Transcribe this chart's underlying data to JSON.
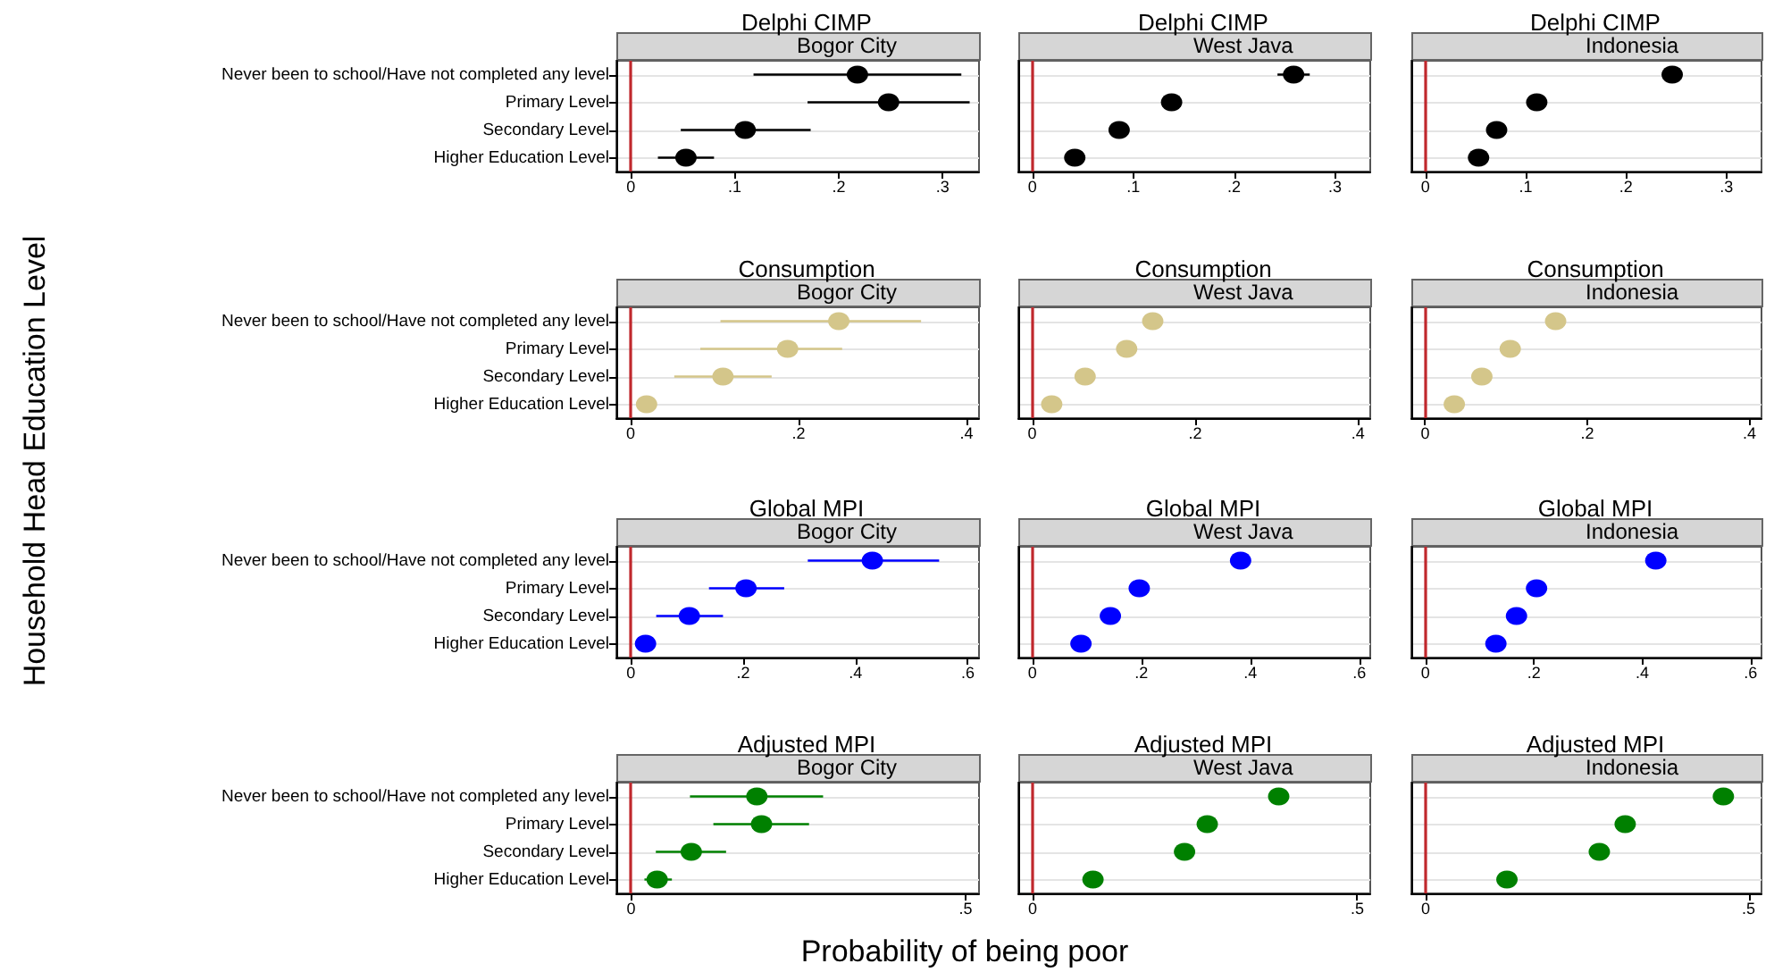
{
  "chart_data": [
    {
      "type": "scatter",
      "orientation": "horizontal",
      "title": "Delphi CIMP",
      "subtitle": "Bogor City",
      "ylabel": "Household Head Education Level",
      "categories": [
        "Never been to school/Have not completed any level",
        "Primary Level",
        "Secondary Level",
        "Higher Education Level"
      ],
      "values": [
        0.218,
        0.248,
        0.11,
        0.053
      ],
      "errors": [
        [
          0.118,
          0.318
        ],
        [
          0.17,
          0.326
        ],
        [
          0.048,
          0.173
        ],
        [
          0.026,
          0.08
        ]
      ],
      "color": "#000000",
      "marker": "circle",
      "xlim": [
        -0.014,
        0.335
      ],
      "xticks": [
        {
          "value": 0,
          "label": "0"
        },
        {
          "value": 0.1,
          "label": ".1"
        },
        {
          "value": 0.2,
          "label": ".2"
        },
        {
          "value": 0.3,
          "label": ".3"
        }
      ],
      "grid": "y",
      "ref_lines": [
        {
          "axis": "x",
          "value": 0,
          "label": null,
          "color": "#c0282d"
        }
      ]
    },
    {
      "type": "scatter",
      "orientation": "horizontal",
      "title": "Delphi CIMP",
      "subtitle": "West Java",
      "categories": [
        null,
        null,
        null,
        null
      ],
      "values": [
        0.259,
        0.138,
        0.086,
        0.042
      ],
      "errors": [
        [
          0.243,
          0.275
        ],
        null,
        null,
        null
      ],
      "color": "#000000",
      "marker": "circle",
      "xlim": [
        -0.014,
        0.335
      ],
      "xticks": [
        {
          "value": 0,
          "label": "0"
        },
        {
          "value": 0.1,
          "label": ".1"
        },
        {
          "value": 0.2,
          "label": ".2"
        },
        {
          "value": 0.3,
          "label": ".3"
        }
      ],
      "grid": "y",
      "tick_labels": "x",
      "ref_lines": [
        {
          "axis": "x",
          "value": 0,
          "label": null,
          "color": "#c0282d"
        }
      ]
    },
    {
      "type": "scatter",
      "orientation": "horizontal",
      "title": "Delphi CIMP",
      "subtitle": "Indonesia",
      "categories": [
        null,
        null,
        null,
        null
      ],
      "values": [
        0.246,
        0.111,
        0.071,
        0.053
      ],
      "color": "#000000",
      "marker": "circle",
      "xlim": [
        -0.014,
        0.335
      ],
      "xticks": [
        {
          "value": 0,
          "label": "0"
        },
        {
          "value": 0.1,
          "label": ".1"
        },
        {
          "value": 0.2,
          "label": ".2"
        },
        {
          "value": 0.3,
          "label": ".3"
        }
      ],
      "grid": "y",
      "tick_labels": "x",
      "ref_lines": [
        {
          "axis": "x",
          "value": 0,
          "label": null,
          "color": "#c0282d"
        }
      ]
    },
    {
      "type": "scatter",
      "orientation": "horizontal",
      "title": "Consumption",
      "subtitle": "Bogor City",
      "categories": [
        "Never been to school/Have not completed any level",
        "Primary Level",
        "Secondary Level",
        "Higher Education Level"
      ],
      "values": [
        0.248,
        0.187,
        0.11,
        0.019
      ],
      "errors": [
        [
          0.107,
          0.346
        ],
        [
          0.083,
          0.252
        ],
        [
          0.052,
          0.168
        ],
        null
      ],
      "color": "#d4c68a",
      "marker": "circle",
      "xlim": [
        -0.017,
        0.415
      ],
      "xticks": [
        {
          "value": 0,
          "label": "0"
        },
        {
          "value": 0.2,
          "label": ".2"
        },
        {
          "value": 0.4,
          "label": ".4"
        }
      ],
      "grid": "y",
      "ref_lines": [
        {
          "axis": "x",
          "value": 0,
          "label": null,
          "color": "#c0282d"
        }
      ]
    },
    {
      "type": "scatter",
      "orientation": "horizontal",
      "title": "Consumption",
      "subtitle": "West Java",
      "categories": [
        null,
        null,
        null,
        null
      ],
      "values": [
        0.148,
        0.116,
        0.065,
        0.024
      ],
      "color": "#d4c68a",
      "marker": "circle",
      "xlim": [
        -0.017,
        0.415
      ],
      "xticks": [
        {
          "value": 0,
          "label": "0"
        },
        {
          "value": 0.2,
          "label": ".2"
        },
        {
          "value": 0.4,
          "label": ".4"
        }
      ],
      "grid": "y",
      "tick_labels": "x",
      "ref_lines": [
        {
          "axis": "x",
          "value": 0,
          "label": null,
          "color": "#c0282d"
        }
      ]
    },
    {
      "type": "scatter",
      "orientation": "horizontal",
      "title": "Consumption",
      "subtitle": "Indonesia",
      "categories": [
        null,
        null,
        null,
        null
      ],
      "values": [
        0.161,
        0.105,
        0.07,
        0.036
      ],
      "color": "#d4c68a",
      "marker": "circle",
      "xlim": [
        -0.017,
        0.415
      ],
      "xticks": [
        {
          "value": 0,
          "label": "0"
        },
        {
          "value": 0.2,
          "label": ".2"
        },
        {
          "value": 0.4,
          "label": ".4"
        }
      ],
      "grid": "y",
      "tick_labels": "x",
      "ref_lines": [
        {
          "axis": "x",
          "value": 0,
          "label": null,
          "color": "#c0282d"
        }
      ]
    },
    {
      "type": "scatter",
      "orientation": "horizontal",
      "title": "Global MPI",
      "subtitle": "Bogor City",
      "categories": [
        "Never been to school/Have not completed any level",
        "Primary Level",
        "Secondary Level",
        "Higher Education Level"
      ],
      "values": [
        0.43,
        0.205,
        0.104,
        0.026
      ],
      "errors": [
        [
          0.315,
          0.549
        ],
        [
          0.139,
          0.273
        ],
        [
          0.045,
          0.164
        ],
        null
      ],
      "color": "#0000ff",
      "marker": "circle",
      "xlim": [
        -0.026,
        0.62
      ],
      "xticks": [
        {
          "value": 0,
          "label": "0"
        },
        {
          "value": 0.2,
          "label": ".2"
        },
        {
          "value": 0.4,
          "label": ".4"
        },
        {
          "value": 0.6,
          "label": ".6"
        }
      ],
      "grid": "y",
      "ref_lines": [
        {
          "axis": "x",
          "value": 0,
          "label": null,
          "color": "#c0282d"
        }
      ]
    },
    {
      "type": "scatter",
      "orientation": "horizontal",
      "title": "Global MPI",
      "subtitle": "West Java",
      "categories": [
        null,
        null,
        null,
        null
      ],
      "values": [
        0.382,
        0.196,
        0.143,
        0.089
      ],
      "color": "#0000ff",
      "marker": "circle",
      "xlim": [
        -0.026,
        0.62
      ],
      "xticks": [
        {
          "value": 0,
          "label": "0"
        },
        {
          "value": 0.2,
          "label": ".2"
        },
        {
          "value": 0.4,
          "label": ".4"
        },
        {
          "value": 0.6,
          "label": ".6"
        }
      ],
      "grid": "y",
      "tick_labels": "x",
      "ref_lines": [
        {
          "axis": "x",
          "value": 0,
          "label": null,
          "color": "#c0282d"
        }
      ]
    },
    {
      "type": "scatter",
      "orientation": "horizontal",
      "title": "Global MPI",
      "subtitle": "Indonesia",
      "categories": [
        null,
        null,
        null,
        null
      ],
      "values": [
        0.425,
        0.205,
        0.168,
        0.13
      ],
      "color": "#0000ff",
      "marker": "circle",
      "xlim": [
        -0.026,
        0.62
      ],
      "xticks": [
        {
          "value": 0,
          "label": "0"
        },
        {
          "value": 0.2,
          "label": ".2"
        },
        {
          "value": 0.4,
          "label": ".4"
        },
        {
          "value": 0.6,
          "label": ".6"
        }
      ],
      "grid": "y",
      "tick_labels": "x",
      "ref_lines": [
        {
          "axis": "x",
          "value": 0,
          "label": null,
          "color": "#c0282d"
        }
      ]
    },
    {
      "type": "scatter",
      "orientation": "horizontal",
      "title": "Adjusted MPI",
      "subtitle": "Bogor City",
      "categories": [
        "Never been to school/Have not completed any level",
        "Primary Level",
        "Secondary Level",
        "Higher Education Level"
      ],
      "values": [
        0.188,
        0.195,
        0.09,
        0.039
      ],
      "errors": [
        [
          0.088,
          0.287
        ],
        [
          0.123,
          0.266
        ],
        [
          0.037,
          0.142
        ],
        [
          0.02,
          0.061
        ]
      ],
      "color": "#008000",
      "marker": "circle",
      "xlim": [
        -0.022,
        0.52
      ],
      "xticks": [
        {
          "value": 0,
          "label": "0"
        },
        {
          "value": 0.5,
          "label": ".5"
        }
      ],
      "grid": "y",
      "ref_lines": [
        {
          "axis": "x",
          "value": 0,
          "label": null,
          "color": "#c0282d"
        }
      ]
    },
    {
      "type": "scatter",
      "orientation": "horizontal",
      "title": "Adjusted MPI",
      "subtitle": "West Java",
      "xlabel": "Probability of being poor",
      "categories": [
        null,
        null,
        null,
        null
      ],
      "values": [
        0.379,
        0.269,
        0.234,
        0.093
      ],
      "color": "#008000",
      "marker": "circle",
      "xlim": [
        -0.022,
        0.52
      ],
      "xticks": [
        {
          "value": 0,
          "label": "0"
        },
        {
          "value": 0.5,
          "label": ".5"
        }
      ],
      "grid": "y",
      "tick_labels": "x",
      "ref_lines": [
        {
          "axis": "x",
          "value": 0,
          "label": null,
          "color": "#c0282d"
        }
      ]
    },
    {
      "type": "scatter",
      "orientation": "horizontal",
      "title": "Adjusted MPI",
      "subtitle": "Indonesia",
      "categories": [
        null,
        null,
        null,
        null
      ],
      "values": [
        0.461,
        0.309,
        0.269,
        0.126
      ],
      "color": "#008000",
      "marker": "circle",
      "xlim": [
        -0.022,
        0.52
      ],
      "xticks": [
        {
          "value": 0,
          "label": "0"
        },
        {
          "value": 0.5,
          "label": ".5"
        }
      ],
      "grid": "y",
      "tick_labels": "x",
      "ref_lines": [
        {
          "axis": "x",
          "value": 0,
          "label": null,
          "color": "#c0282d"
        }
      ]
    }
  ]
}
